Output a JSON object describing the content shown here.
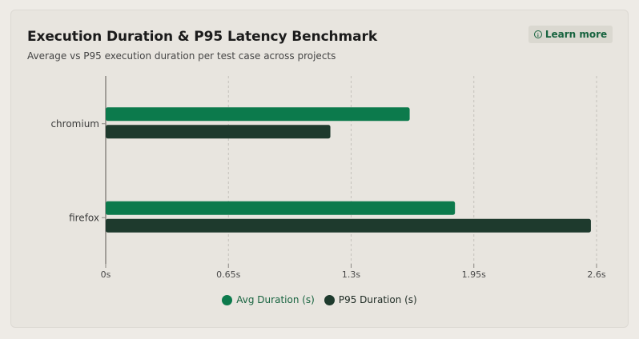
{
  "header": {
    "title": "Execution Duration & P95 Latency Benchmark",
    "subtitle": "Average vs P95 execution duration per test case across projects",
    "learn_more_label": "Learn more",
    "learn_more_icon": "info-icon"
  },
  "chart_data": {
    "type": "bar",
    "orientation": "horizontal",
    "categories": [
      "chromium",
      "firefox"
    ],
    "series": [
      {
        "name": "Avg Duration (s)",
        "values": [
          1.61,
          1.85
        ],
        "color": "#0c7a4c"
      },
      {
        "name": "P95 Duration (s)",
        "values": [
          1.19,
          2.57
        ],
        "color": "#1e3a2d"
      }
    ],
    "x_ticks": [
      0,
      0.65,
      1.3,
      1.95,
      2.6
    ],
    "x_tick_labels": [
      "0s",
      "0.65s",
      "1.3s",
      "1.95s",
      "2.6s"
    ],
    "xlim": [
      0,
      2.6
    ],
    "grid": "vertical-dashed",
    "legend_position": "bottom",
    "title": "Execution Duration & P95 Latency Benchmark",
    "xlabel": "",
    "ylabel": ""
  }
}
